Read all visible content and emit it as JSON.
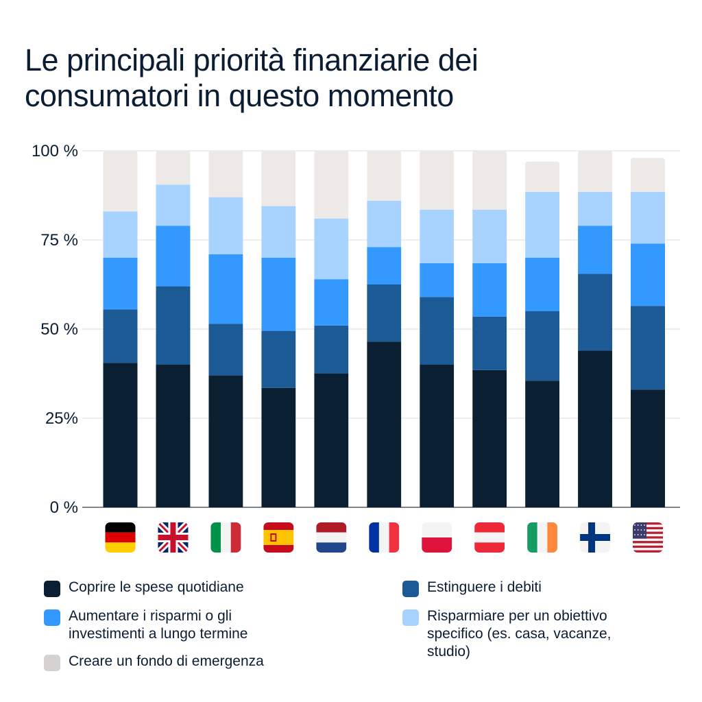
{
  "title_lines": [
    "Le principali priorità finanziarie dei",
    "consumatori in questo momento"
  ],
  "chart_data": {
    "type": "bar",
    "stacked": true,
    "title": "Le principali priorità finanziarie dei consumatori in questo momento",
    "categories": [
      "Germania",
      "Regno Unito",
      "Italia",
      "Spagna",
      "Paesi Bassi",
      "Francia",
      "Polonia",
      "Austria",
      "Irlanda",
      "Finlandia",
      "Stati Uniti"
    ],
    "ylim": [
      0,
      100
    ],
    "yticks": [
      {
        "value": 0,
        "label": "0 %"
      },
      {
        "value": 25,
        "label": "25%"
      },
      {
        "value": 50,
        "label": "50 %"
      },
      {
        "value": 75,
        "label": "75 %"
      },
      {
        "value": 100,
        "label": "100 %"
      }
    ],
    "grid": true,
    "legend_position": "bottom",
    "series": [
      {
        "name": "Coprire le spese quotidiane",
        "color": "#0b1f33",
        "values": [
          40.5,
          40,
          37,
          33.5,
          37.5,
          46.5,
          40,
          38.5,
          35.5,
          44,
          33
        ]
      },
      {
        "name": "Estinguere i debiti",
        "color": "#1c5a96",
        "values": [
          15,
          22,
          14.5,
          16,
          13.5,
          16,
          19,
          15,
          19.5,
          21.5,
          23.5
        ]
      },
      {
        "name": "Aumentare i risparmi o gli investimenti a lungo termine",
        "color": "#3399ff",
        "values": [
          14.5,
          17,
          19.5,
          20.5,
          13,
          10.5,
          9.5,
          15,
          15,
          13.5,
          17.5
        ]
      },
      {
        "name": "Risparmiare per un obiettivo specifico (es. casa, vacanze, studio)",
        "color": "#a8d2ff",
        "values": [
          13,
          11.5,
          16,
          14.5,
          17,
          13,
          15,
          15,
          18.5,
          9.5,
          14.5
        ]
      },
      {
        "name": "Creare un fondo di emergenza",
        "color": "#ece9e7",
        "values": [
          17,
          9.5,
          13,
          15.5,
          19,
          14,
          16.5,
          16.5,
          8.5,
          11.5,
          9.5
        ]
      }
    ],
    "flags": [
      "de-flag-icon",
      "gb-flag-icon",
      "it-flag-icon",
      "es-flag-icon",
      "nl-flag-icon",
      "fr-flag-icon",
      "pl-flag-icon",
      "at-flag-icon",
      "ie-flag-icon",
      "fi-flag-icon",
      "us-flag-icon"
    ]
  },
  "legend": [
    {
      "label": "Coprire le spese quotidiane",
      "color": "#0b1f33"
    },
    {
      "label": "Estinguere i debiti",
      "color": "#1c5a96"
    },
    {
      "label": "Aumentare i risparmi o gli\ninvestimenti a lungo termine",
      "color": "#3399ff"
    },
    {
      "label": "Risparmiare per un obiettivo\nspecifico (es. casa, vacanze,\nstudio)",
      "color": "#a8d2ff"
    },
    {
      "label": "Creare un fondo di emergenza",
      "color": "#d4d2d0"
    }
  ]
}
